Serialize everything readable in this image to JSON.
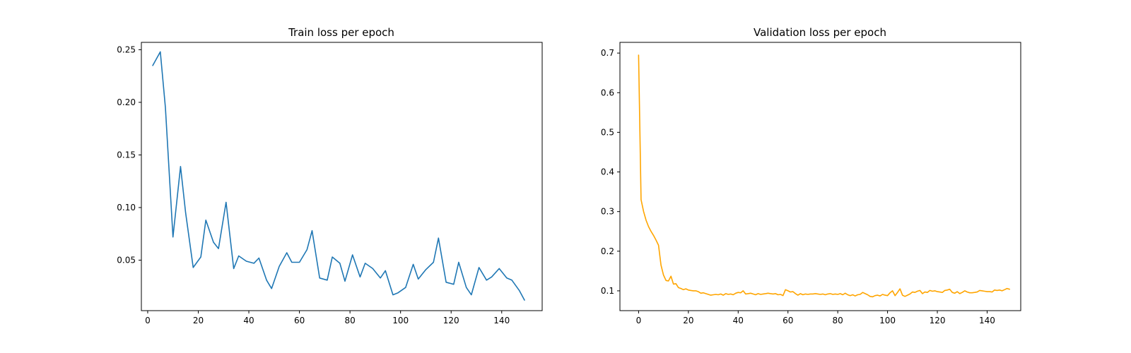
{
  "chart_data": [
    {
      "type": "line",
      "title": "Train loss per epoch",
      "xlabel": "",
      "ylabel": "",
      "xlim": [
        -2.5,
        156
      ],
      "ylim": [
        0.002,
        0.257
      ],
      "xticks": [
        0,
        20,
        40,
        60,
        80,
        100,
        120,
        140
      ],
      "yticks": [
        0.05,
        0.1,
        0.15,
        0.2,
        0.25
      ],
      "grid": false,
      "series": [
        {
          "color": "#1f77b4",
          "x": [
            2,
            5,
            7,
            10,
            13,
            15,
            18,
            21,
            23,
            26,
            28,
            31,
            34,
            36,
            39,
            42,
            44,
            47,
            49,
            52,
            55,
            57,
            60,
            63,
            65,
            68,
            71,
            73,
            76,
            78,
            81,
            84,
            86,
            89,
            92,
            94,
            97,
            99,
            102,
            105,
            107,
            110,
            113,
            115,
            118,
            121,
            123,
            126,
            128,
            131,
            134,
            136,
            139,
            142,
            144,
            147,
            149
          ],
          "y": [
            0.235,
            0.248,
            0.195,
            0.072,
            0.139,
            0.095,
            0.043,
            0.053,
            0.088,
            0.067,
            0.061,
            0.105,
            0.042,
            0.054,
            0.049,
            0.047,
            0.052,
            0.031,
            0.023,
            0.044,
            0.057,
            0.048,
            0.048,
            0.06,
            0.078,
            0.033,
            0.031,
            0.053,
            0.047,
            0.03,
            0.055,
            0.034,
            0.047,
            0.042,
            0.033,
            0.04,
            0.017,
            0.019,
            0.024,
            0.046,
            0.032,
            0.041,
            0.048,
            0.071,
            0.029,
            0.027,
            0.048,
            0.024,
            0.017,
            0.043,
            0.031,
            0.034,
            0.042,
            0.033,
            0.031,
            0.021,
            0.012
          ]
        }
      ]
    },
    {
      "type": "line",
      "title": "Validation loss per epoch",
      "xlabel": "",
      "ylabel": "",
      "xlim": [
        -7.5,
        153.5
      ],
      "ylim": [
        0.05,
        0.727
      ],
      "xticks": [
        0,
        20,
        40,
        60,
        80,
        100,
        120,
        140
      ],
      "yticks": [
        0.1,
        0.2,
        0.3,
        0.4,
        0.5,
        0.6,
        0.7
      ],
      "grid": false,
      "series": [
        {
          "color": "#ffa500",
          "x": [
            0,
            1,
            2,
            3,
            4,
            5,
            6,
            7,
            8,
            9,
            10,
            11,
            12,
            13,
            14,
            15,
            16,
            17,
            18,
            19,
            20,
            21,
            22,
            23,
            24,
            25,
            26,
            27,
            28,
            29,
            30,
            31,
            32,
            33,
            34,
            35,
            36,
            37,
            38,
            39,
            40,
            41,
            42,
            43,
            44,
            45,
            46,
            47,
            48,
            49,
            50,
            51,
            52,
            53,
            54,
            55,
            56,
            57,
            58,
            59,
            60,
            61,
            62,
            63,
            64,
            65,
            66,
            67,
            68,
            69,
            70,
            71,
            72,
            73,
            74,
            75,
            76,
            77,
            78,
            79,
            80,
            81,
            82,
            83,
            84,
            85,
            86,
            87,
            88,
            89,
            90,
            91,
            92,
            93,
            94,
            95,
            96,
            97,
            98,
            99,
            100,
            101,
            102,
            103,
            104,
            105,
            106,
            107,
            108,
            109,
            110,
            111,
            112,
            113,
            114,
            115,
            116,
            117,
            118,
            119,
            120,
            121,
            122,
            123,
            124,
            125,
            126,
            127,
            128,
            129,
            130,
            131,
            132,
            133,
            134,
            135,
            136,
            137,
            138,
            139,
            140,
            141,
            142,
            143,
            144,
            145,
            146,
            147,
            148,
            149
          ],
          "y": [
            0.695,
            0.33,
            0.3,
            0.278,
            0.262,
            0.25,
            0.24,
            0.228,
            0.215,
            0.165,
            0.14,
            0.126,
            0.125,
            0.137,
            0.117,
            0.118,
            0.108,
            0.106,
            0.103,
            0.105,
            0.102,
            0.101,
            0.1,
            0.1,
            0.098,
            0.094,
            0.095,
            0.093,
            0.091,
            0.089,
            0.09,
            0.091,
            0.09,
            0.092,
            0.089,
            0.093,
            0.091,
            0.092,
            0.09,
            0.094,
            0.096,
            0.095,
            0.1,
            0.092,
            0.093,
            0.094,
            0.092,
            0.09,
            0.093,
            0.091,
            0.092,
            0.093,
            0.094,
            0.093,
            0.092,
            0.093,
            0.09,
            0.091,
            0.088,
            0.103,
            0.1,
            0.097,
            0.098,
            0.093,
            0.089,
            0.093,
            0.09,
            0.092,
            0.091,
            0.092,
            0.092,
            0.093,
            0.092,
            0.091,
            0.092,
            0.09,
            0.092,
            0.093,
            0.091,
            0.092,
            0.091,
            0.093,
            0.09,
            0.094,
            0.09,
            0.088,
            0.09,
            0.087,
            0.09,
            0.091,
            0.096,
            0.093,
            0.09,
            0.086,
            0.085,
            0.088,
            0.089,
            0.087,
            0.091,
            0.089,
            0.088,
            0.095,
            0.1,
            0.088,
            0.096,
            0.105,
            0.089,
            0.086,
            0.089,
            0.092,
            0.097,
            0.096,
            0.099,
            0.101,
            0.093,
            0.097,
            0.096,
            0.101,
            0.099,
            0.1,
            0.098,
            0.097,
            0.096,
            0.101,
            0.102,
            0.104,
            0.096,
            0.094,
            0.098,
            0.093,
            0.096,
            0.1,
            0.097,
            0.095,
            0.095,
            0.096,
            0.097,
            0.101,
            0.1,
            0.099,
            0.098,
            0.098,
            0.097,
            0.102,
            0.101,
            0.102,
            0.1,
            0.103,
            0.106,
            0.104
          ]
        }
      ]
    }
  ]
}
